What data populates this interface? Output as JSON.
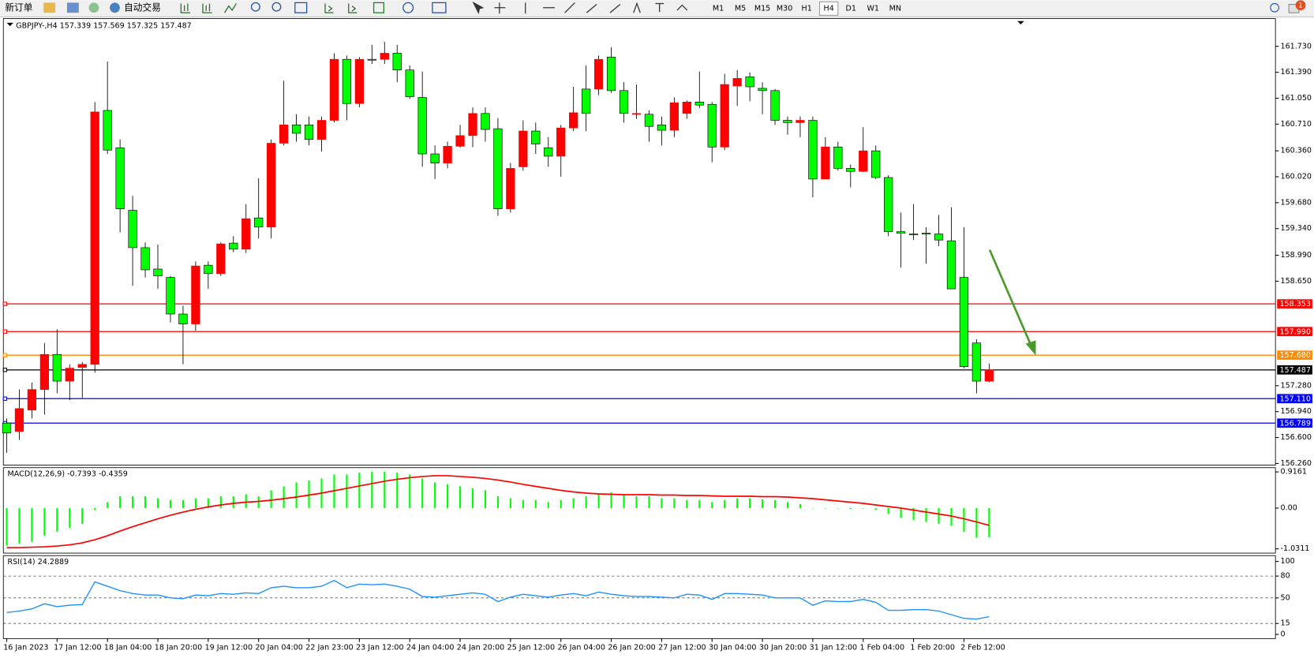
{
  "toolbar": {
    "new_order": "新订单",
    "auto_trade": "自动交易",
    "timeframes": [
      "M1",
      "M5",
      "M15",
      "M30",
      "H1",
      "H4",
      "D1",
      "W1",
      "MN"
    ],
    "active_timeframe": "H4",
    "notification": "1"
  },
  "chart_data": [
    {
      "type": "candlestick",
      "title": "GBPJPY-,H4  157.339 157.569 157.325 157.487",
      "up_color": "#ff0000",
      "down_color": "#00ff00",
      "categories": [
        "16 Jan 2023",
        null,
        null,
        null,
        "17 Jan 12:00",
        null,
        null,
        null,
        "18 Jan 04:00",
        null,
        null,
        null,
        "18 Jan 20:00",
        null,
        null,
        null,
        "19 Jan 12:00",
        null,
        null,
        null,
        "20 Jan 04:00",
        null,
        null,
        null,
        "22 Jan 23:00",
        null,
        null,
        null,
        "23 Jan 12:00",
        null,
        null,
        null,
        "24 Jan 04:00",
        null,
        null,
        null,
        "24 Jan 20:00",
        null,
        null,
        null,
        "25 Jan 12:00",
        null,
        null,
        null,
        "26 Jan 04:00",
        null,
        null,
        null,
        "26 Jan 20:00",
        null,
        null,
        null,
        "27 Jan 12:00",
        null,
        null,
        null,
        "30 Jan 04:00",
        null,
        null,
        null,
        "30 Jan 20:00",
        null,
        null,
        null,
        "31 Jan 12:00",
        null,
        null,
        null,
        "1 Feb 04:00",
        null,
        null,
        null,
        "1 Feb 20:00",
        null,
        null,
        null,
        "2 Feb 12:00",
        null,
        null
      ],
      "open": [
        156.79,
        156.68,
        156.96,
        157.23,
        157.69,
        157.34,
        157.52,
        157.56,
        160.89,
        160.4,
        159.58,
        159.09,
        158.81,
        158.7,
        158.22,
        158.09,
        158.86,
        158.75,
        159.15,
        159.07,
        159.48,
        159.36,
        160.46,
        160.7,
        160.7,
        160.51,
        160.76,
        161.56,
        160.98,
        161.56,
        161.56,
        161.64,
        161.42,
        161.06,
        160.32,
        160.2,
        160.42,
        160.56,
        160.85,
        160.65,
        159.6,
        160.15,
        160.62,
        160.4,
        160.29,
        160.66,
        161.17,
        161.17,
        161.59,
        161.15,
        160.85,
        160.84,
        160.7,
        160.63,
        160.85,
        161.0,
        160.97,
        160.41,
        161.21,
        161.33,
        161.18,
        161.15,
        160.76,
        160.73,
        160.76,
        159.99,
        160.41,
        160.13,
        160.09,
        160.36,
        160.01,
        159.3,
        159.27,
        159.28,
        159.27,
        159.18,
        158.7,
        157.84,
        157.339
      ],
      "high": [
        156.85,
        157.23,
        157.32,
        157.84,
        158.02,
        157.56,
        157.59,
        161.0,
        161.53,
        160.51,
        159.77,
        159.16,
        159.13,
        158.72,
        158.33,
        158.91,
        158.91,
        159.16,
        159.24,
        159.66,
        160.0,
        160.51,
        161.28,
        160.84,
        160.81,
        160.81,
        161.64,
        161.61,
        161.59,
        161.75,
        161.79,
        161.75,
        161.48,
        161.4,
        160.43,
        160.48,
        160.7,
        160.93,
        160.93,
        160.79,
        160.2,
        160.76,
        160.73,
        160.54,
        160.7,
        161.2,
        161.48,
        161.61,
        161.72,
        161.26,
        161.23,
        160.89,
        160.81,
        161.06,
        161.02,
        161.4,
        161.0,
        161.37,
        161.42,
        161.39,
        161.26,
        161.17,
        160.81,
        160.81,
        160.81,
        160.54,
        160.48,
        160.18,
        160.67,
        160.43,
        160.04,
        159.55,
        159.66,
        159.36,
        159.52,
        159.62,
        159.36,
        157.89,
        157.569
      ],
      "low": [
        156.4,
        156.57,
        156.85,
        156.9,
        157.18,
        157.09,
        157.12,
        157.45,
        160.32,
        159.29,
        158.59,
        158.7,
        158.55,
        158.11,
        157.56,
        158.0,
        158.55,
        158.72,
        159.03,
        159.02,
        159.21,
        159.21,
        160.43,
        160.48,
        160.43,
        160.35,
        160.73,
        160.76,
        160.93,
        161.5,
        161.5,
        161.26,
        161.04,
        160.15,
        159.99,
        160.13,
        160.4,
        160.41,
        160.48,
        159.51,
        159.55,
        160.1,
        160.32,
        160.15,
        160.02,
        160.62,
        160.62,
        161.09,
        161.12,
        160.73,
        160.78,
        160.48,
        160.43,
        160.54,
        160.78,
        160.92,
        160.21,
        160.37,
        160.95,
        161.01,
        160.84,
        160.7,
        160.57,
        160.54,
        159.75,
        159.99,
        160.1,
        159.88,
        160.08,
        159.99,
        159.24,
        158.83,
        159.19,
        158.88,
        159.11,
        158.55,
        157.51,
        157.18,
        157.325
      ],
      "close": [
        156.66,
        156.98,
        157.23,
        157.69,
        157.34,
        157.51,
        157.56,
        160.87,
        160.37,
        159.6,
        159.09,
        158.8,
        158.72,
        158.22,
        158.09,
        158.85,
        158.75,
        159.14,
        159.07,
        159.47,
        159.36,
        160.46,
        160.7,
        160.59,
        160.51,
        160.76,
        161.56,
        160.98,
        161.56,
        161.55,
        161.64,
        161.42,
        161.07,
        160.32,
        160.2,
        160.42,
        160.56,
        160.85,
        160.64,
        159.6,
        160.13,
        160.62,
        160.45,
        160.29,
        160.66,
        160.86,
        160.85,
        161.56,
        161.15,
        160.85,
        160.85,
        160.68,
        160.63,
        160.99,
        161.0,
        160.96,
        160.41,
        161.23,
        161.31,
        161.2,
        161.15,
        160.76,
        160.73,
        160.76,
        159.99,
        160.41,
        160.13,
        160.09,
        160.36,
        160.01,
        159.3,
        159.28,
        159.26,
        159.27,
        159.19,
        158.55,
        157.53,
        157.34,
        157.487
      ],
      "ylim": [
        156.238,
        162.094
      ],
      "yticks": [
        {
          "value": 161.73,
          "label": "161.730"
        },
        {
          "value": 161.39,
          "label": "161.390"
        },
        {
          "value": 161.05,
          "label": "161.050"
        },
        {
          "value": 160.71,
          "label": "160.710"
        },
        {
          "value": 160.36,
          "label": "160.360"
        },
        {
          "value": 160.02,
          "label": "160.020"
        },
        {
          "value": 159.68,
          "label": "159.680"
        },
        {
          "value": 159.34,
          "label": "159.340"
        },
        {
          "value": 158.99,
          "label": "158.990"
        },
        {
          "value": 158.65,
          "label": "158.650"
        },
        {
          "value": 157.28,
          "label": "157.280"
        },
        {
          "value": 156.94,
          "label": "156.940"
        },
        {
          "value": 156.6,
          "label": "156.600"
        },
        {
          "value": 156.26,
          "label": "156.260"
        }
      ],
      "levels": [
        {
          "value": 158.353,
          "color": "#ff0000"
        },
        {
          "value": 157.99,
          "label": "157.990",
          "color": "#ff0000"
        },
        {
          "value": 157.68,
          "label": "157.680",
          "color": "#ff8c00"
        },
        {
          "value": 157.487,
          "color": "#000000"
        },
        {
          "value": 157.11,
          "label": "157.110",
          "color": "#0000ff"
        },
        {
          "value": 156.789,
          "color": "#0000ff"
        }
      ]
    },
    {
      "type": "macd",
      "title": "MACD(12,26,9) -0.7393 -0.4359",
      "series": [
        {
          "name": "MACD",
          "kind": "histogram",
          "color": "#00ff00",
          "values": [
            -0.95,
            -0.9,
            -0.85,
            -0.7,
            -0.6,
            -0.5,
            -0.4,
            -0.05,
            0.15,
            0.3,
            0.3,
            0.3,
            0.25,
            0.2,
            0.2,
            0.25,
            0.25,
            0.3,
            0.3,
            0.35,
            0.3,
            0.45,
            0.55,
            0.65,
            0.7,
            0.75,
            0.85,
            0.85,
            0.9,
            0.92,
            0.92,
            0.9,
            0.85,
            0.75,
            0.65,
            0.6,
            0.55,
            0.5,
            0.45,
            0.3,
            0.25,
            0.2,
            0.2,
            0.15,
            0.2,
            0.25,
            0.3,
            0.35,
            0.4,
            0.35,
            0.3,
            0.3,
            0.25,
            0.25,
            0.2,
            0.2,
            0.15,
            0.2,
            0.25,
            0.25,
            0.22,
            0.2,
            0.15,
            0.1,
            0.0,
            0.0,
            0.0,
            -0.02,
            0.0,
            -0.05,
            -0.15,
            -0.25,
            -0.3,
            -0.35,
            -0.4,
            -0.45,
            -0.6,
            -0.75,
            -0.7393
          ]
        },
        {
          "name": "Signal",
          "kind": "line",
          "color": "#ff0000",
          "values": [
            -1.0,
            -1.0,
            -0.99,
            -0.98,
            -0.96,
            -0.93,
            -0.88,
            -0.8,
            -0.7,
            -0.58,
            -0.47,
            -0.37,
            -0.27,
            -0.18,
            -0.1,
            -0.03,
            0.03,
            0.08,
            0.12,
            0.15,
            0.17,
            0.2,
            0.24,
            0.28,
            0.33,
            0.38,
            0.44,
            0.5,
            0.56,
            0.62,
            0.68,
            0.73,
            0.77,
            0.8,
            0.82,
            0.82,
            0.8,
            0.78,
            0.75,
            0.71,
            0.66,
            0.6,
            0.55,
            0.5,
            0.45,
            0.41,
            0.38,
            0.36,
            0.35,
            0.34,
            0.34,
            0.34,
            0.33,
            0.33,
            0.32,
            0.32,
            0.31,
            0.3,
            0.3,
            0.3,
            0.29,
            0.29,
            0.28,
            0.26,
            0.24,
            0.21,
            0.18,
            0.15,
            0.12,
            0.08,
            0.04,
            0.0,
            -0.05,
            -0.1,
            -0.15,
            -0.2,
            -0.27,
            -0.35,
            -0.4359
          ]
        }
      ],
      "ylim": [
        -1.139,
        1.024
      ],
      "yticks": [
        0.9161,
        {
          "value": 0,
          "label": "0.00"
        },
        -1.0311
      ]
    },
    {
      "type": "rsi",
      "title": "RSI(14) 24.2889",
      "color": "#1e90ff",
      "values": [
        30,
        32,
        35,
        42,
        38,
        40,
        41,
        72,
        66,
        60,
        56,
        54,
        54,
        50,
        49,
        54,
        53,
        56,
        55,
        57,
        56,
        64,
        66,
        64,
        64,
        66,
        74,
        64,
        69,
        68,
        69,
        66,
        62,
        52,
        51,
        53,
        55,
        57,
        55,
        45,
        51,
        55,
        53,
        51,
        54,
        56,
        53,
        58,
        55,
        53,
        52,
        52,
        51,
        50,
        55,
        54,
        48,
        56,
        56,
        55,
        54,
        50,
        50,
        50,
        40,
        46,
        45,
        45,
        48,
        44,
        33,
        33,
        34,
        34,
        32,
        27,
        22,
        21,
        24.2889
      ],
      "ylim": [
        -5.7,
        108
      ],
      "yticks": [
        100,
        80,
        50,
        15,
        0
      ],
      "levels": [
        80,
        50,
        15
      ]
    }
  ]
}
